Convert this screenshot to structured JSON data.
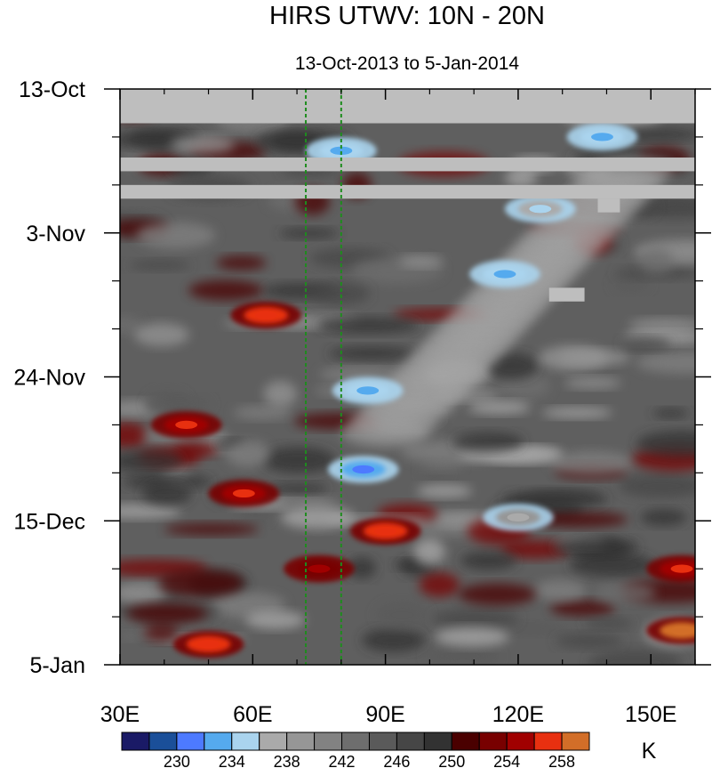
{
  "chart_data": {
    "type": "heatmap",
    "title": "HIRS UTWV: 10N - 20N",
    "subtitle": "13-Oct-2013 to 5-Jan-2014",
    "x_axis": {
      "range": [
        30,
        160
      ],
      "ticks": [
        30,
        60,
        90,
        120,
        150
      ],
      "tick_labels": [
        "30E",
        "60E",
        "90E",
        "120E",
        "150E"
      ],
      "minor_ticks": [
        40,
        50,
        70,
        80,
        100,
        110,
        130,
        140,
        160
      ]
    },
    "y_axis": {
      "range_days": [
        0,
        84
      ],
      "ticks": [
        0,
        21,
        42,
        63,
        84
      ],
      "tick_labels": [
        "13-Oct",
        "3-Nov",
        "24-Nov",
        "15-Dec",
        "5-Jan"
      ],
      "minor_ticks": [
        7,
        14,
        28,
        35,
        49,
        56,
        70,
        77
      ],
      "direction": "time increases downward"
    },
    "reference_lines_lon": [
      72,
      80
    ],
    "missing_data": {
      "bands_days": [
        [
          0,
          5
        ],
        [
          10,
          12
        ],
        [
          14,
          16
        ]
      ],
      "patches": [
        {
          "lon": [
            138,
            143
          ],
          "days": [
            16,
            18
          ]
        },
        {
          "lon": [
            127,
            135
          ],
          "days": [
            29,
            31
          ]
        }
      ]
    },
    "features": [
      {
        "lon": 85,
        "day": 55.5,
        "value": 230
      },
      {
        "lon": 86,
        "day": 44,
        "value": 233
      },
      {
        "lon": 117,
        "day": 27,
        "value": 232
      },
      {
        "lon": 139,
        "day": 7,
        "value": 232
      },
      {
        "lon": 80,
        "day": 9,
        "value": 233
      },
      {
        "lon": 120,
        "day": 62.5,
        "value": 236
      },
      {
        "lon": 125,
        "day": 17.5,
        "value": 234
      },
      {
        "lon": 63,
        "day": 33,
        "value": 257
      },
      {
        "lon": 45,
        "day": 49,
        "value": 256
      },
      {
        "lon": 58,
        "day": 59,
        "value": 256
      },
      {
        "lon": 90,
        "day": 64.5,
        "value": 257
      },
      {
        "lon": 50,
        "day": 81,
        "value": 257
      },
      {
        "lon": 157,
        "day": 79,
        "value": 259
      },
      {
        "lon": 157,
        "day": 70,
        "value": 256
      },
      {
        "lon": 75,
        "day": 70,
        "value": 254
      }
    ],
    "colorbar": {
      "label": "K",
      "colors": [
        "#1a1a66",
        "#1a4f99",
        "#4d7aff",
        "#55aaee",
        "#aad4ee",
        "#aaaaaa",
        "#969696",
        "#828282",
        "#6e6e6e",
        "#5a5a5a",
        "#464646",
        "#323232",
        "#4a0000",
        "#780000",
        "#a00000",
        "#e83010",
        "#d26e28"
      ],
      "labeled_ticks": [
        "230",
        "234",
        "238",
        "242",
        "246",
        "250",
        "254",
        "258"
      ]
    }
  }
}
